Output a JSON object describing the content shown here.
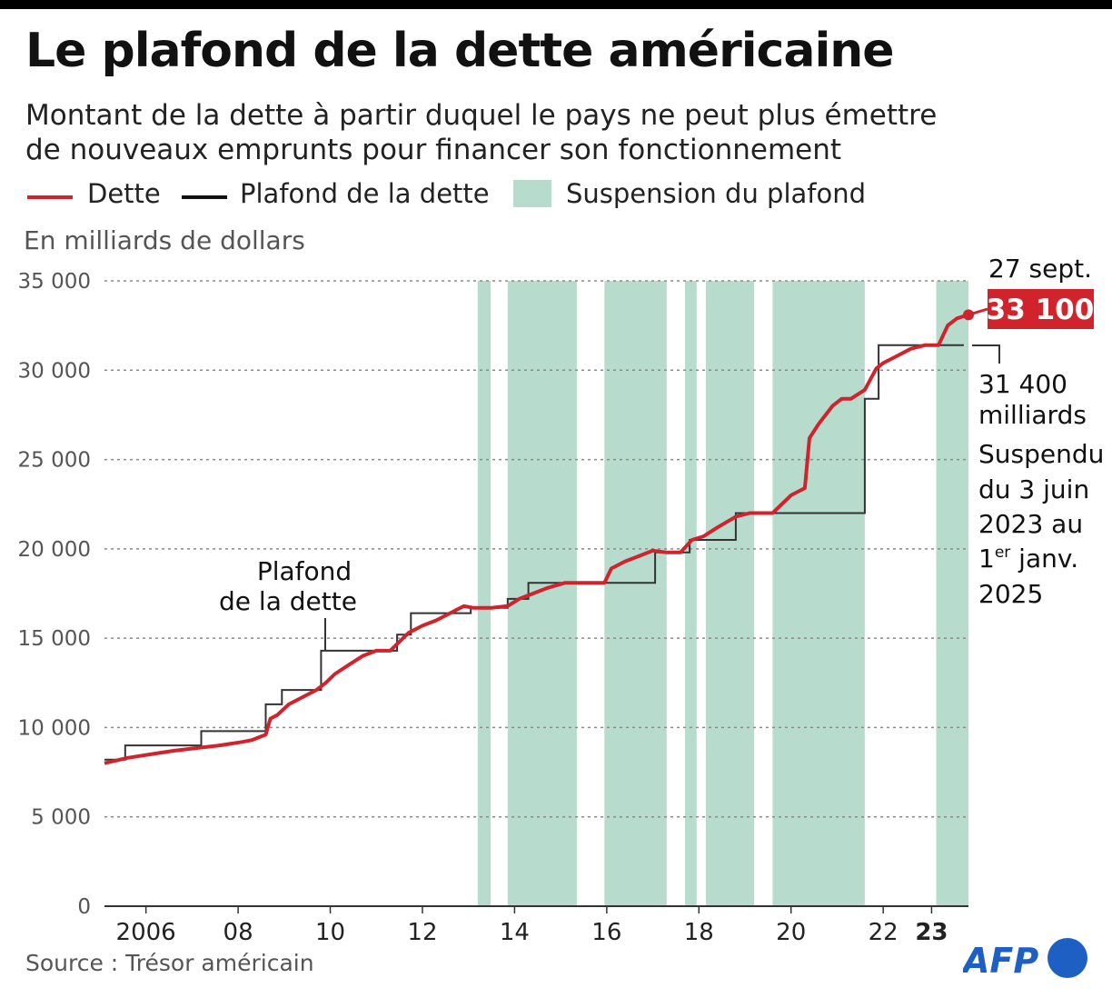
{
  "header": {
    "title": "Le plafond de la dette américaine",
    "subtitle_line1": "Montant de la dette à partir duquel le pays ne peut plus émettre",
    "subtitle_line2": "de nouveaux emprunts pour financer son fonctionnement"
  },
  "legend": {
    "debt": "Dette",
    "ceiling": "Plafond de la dette",
    "suspension": "Suspension du plafond"
  },
  "unit_label": "En milliards de dollars",
  "source": "Source : Trésor américain",
  "logo_text": "AFP",
  "annotations": {
    "ceiling_label_line1": "Plafond",
    "ceiling_label_line2": "de la dette",
    "end_date": "27 sept.",
    "end_value": "33 100",
    "last_ceiling_line1": "31 400",
    "last_ceiling_line2": "milliards",
    "suspended_line1": "Suspendu",
    "suspended_line2": "du 3 juin",
    "suspended_line3": "2023 au",
    "suspended_line4_pre": "1",
    "suspended_line4_sup": "er",
    "suspended_line4_post": " janv.",
    "suspended_line5": "2025"
  },
  "colors": {
    "debt": "#d0232c",
    "ceiling": "#333333",
    "suspension": "#b7dccd",
    "logo_blue": "#1e5fc4"
  },
  "chart_data": {
    "type": "line",
    "title": "Le plafond de la dette américaine",
    "ylabel": "En milliards de dollars",
    "xlim": [
      2005.0,
      2023.75
    ],
    "ylim": [
      0,
      35000
    ],
    "grid": true,
    "legend_placement": "top",
    "y_ticks": [
      {
        "value": 0,
        "label": "0"
      },
      {
        "value": 5000,
        "label": "5 000"
      },
      {
        "value": 10000,
        "label": "10 000"
      },
      {
        "value": 15000,
        "label": "15 000"
      },
      {
        "value": 20000,
        "label": "20 000"
      },
      {
        "value": 25000,
        "label": "25 000"
      },
      {
        "value": 30000,
        "label": "30 000"
      },
      {
        "value": 35000,
        "label": "35 000"
      }
    ],
    "x_ticks": [
      {
        "value": 2005.9,
        "label": "2006"
      },
      {
        "value": 2007.9,
        "label": "08"
      },
      {
        "value": 2009.9,
        "label": "10"
      },
      {
        "value": 2011.9,
        "label": "12"
      },
      {
        "value": 2013.9,
        "label": "14"
      },
      {
        "value": 2015.9,
        "label": "16"
      },
      {
        "value": 2017.9,
        "label": "18"
      },
      {
        "value": 2019.9,
        "label": "20"
      },
      {
        "value": 2021.9,
        "label": "22"
      },
      {
        "value": 2022.95,
        "label": "23"
      }
    ],
    "suspension_periods": [
      [
        2013.1,
        2013.38
      ],
      [
        2013.75,
        2015.25
      ],
      [
        2015.85,
        2017.2
      ],
      [
        2017.6,
        2017.85
      ],
      [
        2018.05,
        2019.1
      ],
      [
        2019.5,
        2021.5
      ],
      [
        2023.05,
        2023.75
      ]
    ],
    "series": [
      {
        "name": "Dette",
        "x": [
          2005.0,
          2005.5,
          2006.0,
          2006.5,
          2007.0,
          2007.5,
          2008.0,
          2008.2,
          2008.4,
          2008.5,
          2008.6,
          2008.75,
          2009.0,
          2009.3,
          2009.6,
          2009.8,
          2010.0,
          2010.3,
          2010.6,
          2010.9,
          2011.2,
          2011.4,
          2011.6,
          2011.9,
          2012.2,
          2012.5,
          2012.8,
          2013.0,
          2013.4,
          2013.75,
          2014.0,
          2014.3,
          2014.6,
          2015.0,
          2015.5,
          2015.85,
          2016.0,
          2016.3,
          2016.6,
          2016.9,
          2017.2,
          2017.5,
          2017.75,
          2018.0,
          2018.3,
          2018.7,
          2019.0,
          2019.5,
          2019.9,
          2020.2,
          2020.3,
          2020.5,
          2020.8,
          2021.0,
          2021.2,
          2021.5,
          2021.75,
          2021.9,
          2022.2,
          2022.5,
          2022.8,
          2023.0,
          2023.1,
          2023.3,
          2023.5,
          2023.75
        ],
        "y": [
          8000,
          8300,
          8500,
          8700,
          8850,
          9000,
          9200,
          9300,
          9500,
          9600,
          10500,
          10700,
          11300,
          11700,
          12100,
          12500,
          13000,
          13500,
          14000,
          14300,
          14300,
          14800,
          15300,
          15700,
          16000,
          16400,
          16800,
          16700,
          16700,
          16800,
          17200,
          17500,
          17800,
          18100,
          18100,
          18100,
          18900,
          19300,
          19600,
          19900,
          19800,
          19800,
          20500,
          20700,
          21200,
          21800,
          22000,
          22000,
          23000,
          23400,
          26200,
          27000,
          28000,
          28400,
          28400,
          28900,
          30100,
          30400,
          30800,
          31200,
          31400,
          31400,
          31400,
          32500,
          32900,
          33100
        ]
      },
      {
        "name": "Plafond de la dette",
        "x": [
          2005.0,
          2005.45,
          2005.45,
          2007.1,
          2007.1,
          2008.5,
          2008.5,
          2008.85,
          2008.85,
          2009.7,
          2009.7,
          2011.35,
          2011.35,
          2011.65,
          2011.65,
          2012.95,
          2012.95,
          2013.75,
          2013.75,
          2014.2,
          2014.2,
          2014.9,
          2014.9,
          2016.95,
          2016.95,
          2017.7,
          2017.7,
          2018.7,
          2018.7,
          2021.5,
          2021.5,
          2021.8,
          2021.8,
          2023.65
        ],
        "y": [
          8200,
          8200,
          9000,
          9000,
          9800,
          9800,
          11300,
          11300,
          12100,
          12100,
          14300,
          14300,
          15200,
          15200,
          16400,
          16400,
          16700,
          16700,
          17200,
          17200,
          18100,
          18100,
          18100,
          18100,
          19800,
          19800,
          20500,
          20500,
          22000,
          22000,
          28400,
          28400,
          31400,
          31400
        ]
      }
    ],
    "end_point": {
      "x": 2023.75,
      "y": 33100,
      "label": "33 100",
      "date": "27 sept."
    },
    "last_ceiling": {
      "value": 31400
    }
  }
}
